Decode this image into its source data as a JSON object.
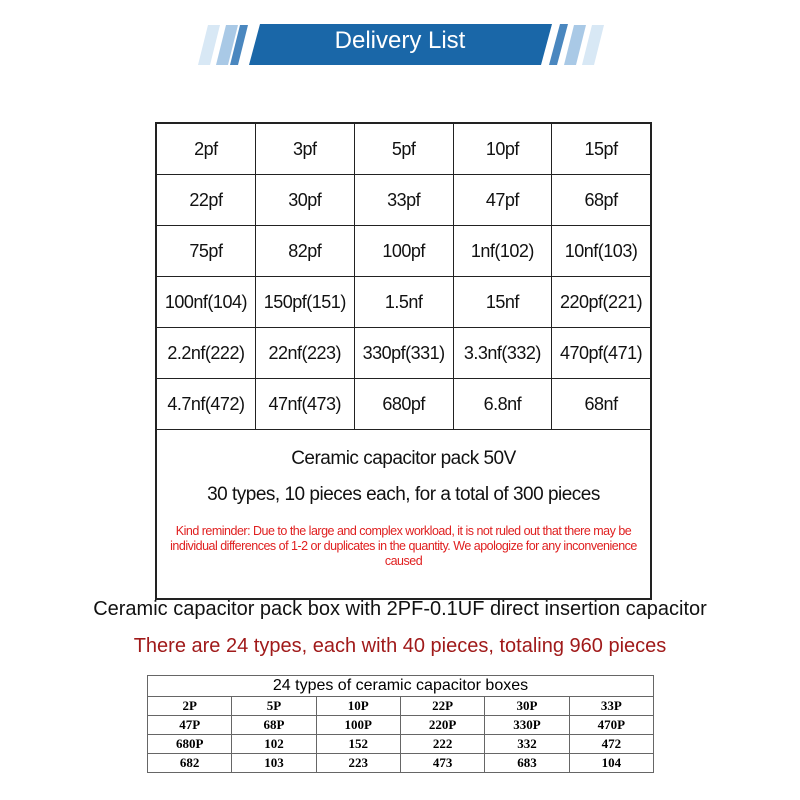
{
  "banner": {
    "title": "Delivery List",
    "color": "#1a67a8"
  },
  "main_table": {
    "rows": [
      [
        "2pf",
        "3pf",
        "5pf",
        "10pf",
        "15pf"
      ],
      [
        "22pf",
        "30pf",
        "33pf",
        "47pf",
        "68pf"
      ],
      [
        "75pf",
        "82pf",
        "100pf",
        "1nf(102)",
        "10nf(103)"
      ],
      [
        "100nf(104)",
        "150pf(151)",
        "1.5nf",
        "15nf",
        "220pf(221)"
      ],
      [
        "2.2nf(222)",
        "22nf(223)",
        "330pf(331)",
        "3.3nf(332)",
        "470pf(471)"
      ],
      [
        "4.7nf(472)",
        "47nf(473)",
        "680pf",
        "6.8nf",
        "68nf"
      ]
    ],
    "info_title": "Ceramic capacitor pack 50V",
    "info_sub": "30 types, 10 pieces each, for a total of 300 pieces",
    "reminder": "Kind reminder: Due to the large and complex workload, it is not ruled out that there may be individual differences of 1-2 or duplicates in the quantity. We apologize for any inconvenience caused"
  },
  "heading1": "Ceramic capacitor pack box with 2PF-0.1UF direct insertion capacitor",
  "heading2": "There are 24 types, each with 40 pieces, totaling 960 pieces",
  "box_table": {
    "title": "24 types of ceramic capacitor boxes",
    "rows": [
      [
        "2P",
        "5P",
        "10P",
        "22P",
        "30P",
        "33P"
      ],
      [
        "47P",
        "68P",
        "100P",
        "220P",
        "330P",
        "470P"
      ],
      [
        "680P",
        "102",
        "152",
        "222",
        "332",
        "472"
      ],
      [
        "682",
        "103",
        "223",
        "473",
        "683",
        "104"
      ]
    ]
  }
}
